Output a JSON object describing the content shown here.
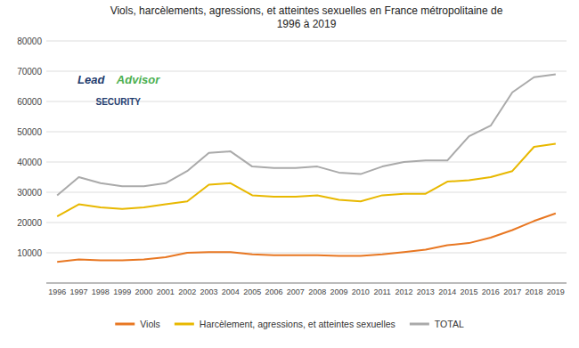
{
  "chart_data": {
    "type": "line",
    "title": "Viols, harcèlements, agressions, et atteintes sexuelles en France métropolitaine de\n1996 à 2019",
    "x": [
      1996,
      1997,
      1998,
      1999,
      2000,
      2001,
      2002,
      2003,
      2004,
      2005,
      2006,
      2007,
      2008,
      2009,
      2010,
      2011,
      2012,
      2013,
      2014,
      2015,
      2016,
      2017,
      2018,
      2019
    ],
    "series": [
      {
        "name": "TOTAL",
        "color": "#AAAAAA",
        "values": [
          29000,
          35000,
          33000,
          32000,
          32000,
          33000,
          37000,
          43000,
          43500,
          38500,
          38000,
          38000,
          38500,
          36500,
          36000,
          38500,
          40000,
          40500,
          40500,
          48500,
          52000,
          63000,
          68000,
          69000
        ]
      },
      {
        "name": "Harcèlement, agressions, et atteintes sexuelles",
        "color": "#E8B800",
        "values": [
          22000,
          26000,
          25000,
          24500,
          25000,
          26000,
          27000,
          32500,
          33000,
          29000,
          28500,
          28500,
          29000,
          27500,
          27000,
          29000,
          29500,
          29500,
          33500,
          34000,
          35000,
          37000,
          45000,
          46000
        ]
      },
      {
        "name": "Viols",
        "color": "#E87722",
        "values": [
          7000,
          7800,
          7500,
          7500,
          7800,
          8500,
          10000,
          10200,
          10200,
          9500,
          9200,
          9200,
          9200,
          9000,
          9000,
          9500,
          10200,
          11000,
          12500,
          13200,
          15000,
          17500,
          20500,
          23000
        ]
      }
    ],
    "xlim": [
      1995.5,
      2019.5
    ],
    "xticks": [
      1996,
      1997,
      1998,
      1999,
      2000,
      2001,
      2002,
      2003,
      2004,
      2005,
      2006,
      2007,
      2008,
      2009,
      2010,
      2011,
      2012,
      2013,
      2014,
      2015,
      2016,
      2017,
      2018,
      2019
    ],
    "ylim": [
      0,
      80000
    ],
    "yticks": [
      {
        "value": 0,
        "label": null
      },
      10000,
      20000,
      30000,
      40000,
      50000,
      60000,
      70000,
      80000
    ],
    "grid": true,
    "legend": "bottom",
    "annotations": [
      {
        "text": "Lead",
        "color": "#1F3C6E"
      },
      {
        "text": "Advisor",
        "color": "#4CAF50"
      },
      {
        "text": "SECURITY",
        "color": "#1F3C6E"
      }
    ]
  }
}
